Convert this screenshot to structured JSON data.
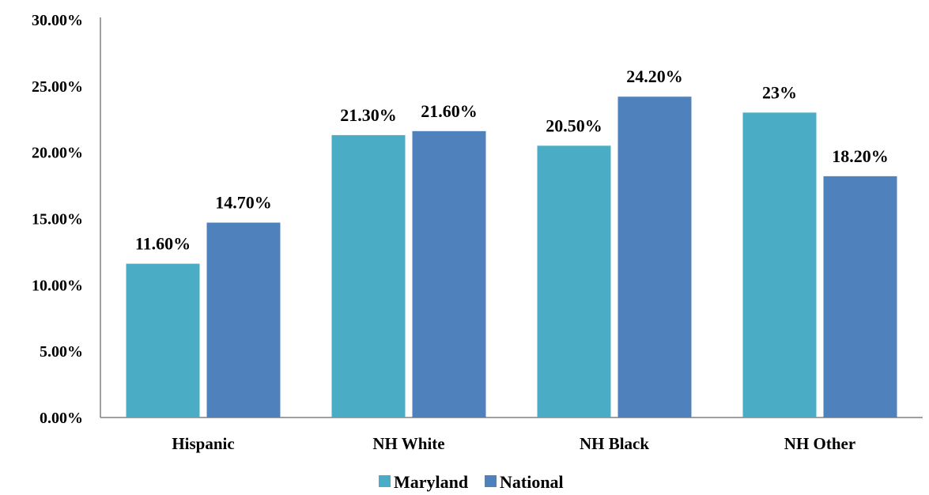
{
  "chart_data": {
    "type": "bar",
    "categories": [
      "Hispanic",
      "NH White",
      "NH Black",
      "NH Other"
    ],
    "series": [
      {
        "name": "Maryland",
        "color": "#4BACC6",
        "values": [
          11.6,
          21.3,
          20.5,
          23.0
        ],
        "labels": [
          "11.60%",
          "21.30%",
          "20.50%",
          "23%"
        ]
      },
      {
        "name": "National",
        "color": "#4F81BD",
        "values": [
          14.7,
          21.6,
          24.2,
          18.2
        ],
        "labels": [
          "14.70%",
          "21.60%",
          "24.20%",
          "18.20%"
        ]
      }
    ],
    "yticks": [
      "0.00%",
      "5.00%",
      "10.00%",
      "15.00%",
      "20.00%",
      "25.00%",
      "30.00%"
    ],
    "ylim": [
      0,
      30
    ],
    "ytick_step": 5,
    "grid": false,
    "legend_position": "bottom"
  }
}
